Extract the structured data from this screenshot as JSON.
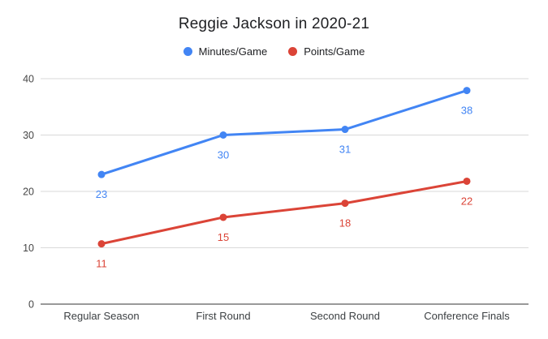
{
  "chart_data": {
    "type": "line",
    "title": "Reggie Jackson in 2020-21",
    "categories": [
      "Regular Season",
      "First Round",
      "Second Round",
      "Conference Finals"
    ],
    "series": [
      {
        "name": "Minutes/Game",
        "color": "#4285f4",
        "values": [
          23,
          30,
          31,
          37.9
        ],
        "data_labels": [
          "23",
          "30",
          "31",
          "38"
        ]
      },
      {
        "name": "Points/Game",
        "color": "#db4437",
        "values": [
          10.7,
          15.4,
          17.9,
          21.8
        ],
        "data_labels": [
          "11",
          "15",
          "18",
          "22"
        ]
      }
    ],
    "xlabel": "",
    "ylabel": "",
    "ylim": [
      0,
      40
    ],
    "yticks": [
      0,
      10,
      20,
      30,
      40
    ],
    "grid": true,
    "legend_position": "top",
    "background": "#ffffff",
    "axis_line_color": "#333333",
    "gridline_color": "#d9d9d9",
    "tick_label_color": "#464646",
    "category_label_color": "#3c4043"
  }
}
